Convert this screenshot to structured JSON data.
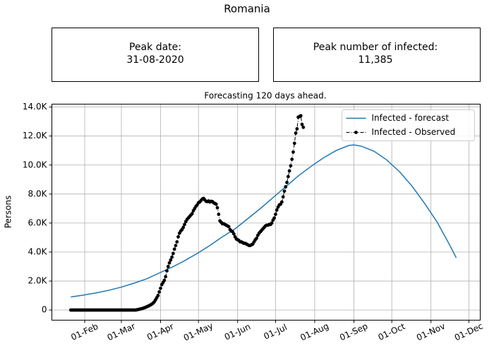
{
  "chart_data": {
    "type": "line",
    "title": "Romania",
    "annotations": [
      {
        "title": "Peak date:",
        "value": "31-08-2020"
      },
      {
        "title": "Peak number of infected:",
        "value": "11,385"
      }
    ],
    "subtitle": "Forecasting 120 days ahead.",
    "ylabel": "Persons",
    "xlim": [
      5,
      344
    ],
    "xticks": [
      {
        "value": 31,
        "label": "01-Feb"
      },
      {
        "value": 60,
        "label": "01-Mar"
      },
      {
        "value": 91,
        "label": "01-Apr"
      },
      {
        "value": 121,
        "label": "01-May"
      },
      {
        "value": 152,
        "label": "01-Jun"
      },
      {
        "value": 182,
        "label": "01-Jul"
      },
      {
        "value": 213,
        "label": "01-Aug"
      },
      {
        "value": 244,
        "label": "01-Sep"
      },
      {
        "value": 274,
        "label": "01-Oct"
      },
      {
        "value": 305,
        "label": "01-Nov"
      },
      {
        "value": 335,
        "label": "01-Dec"
      }
    ],
    "ylim": [
      -700,
      14200
    ],
    "yticks": [
      0,
      {
        "value": 2000,
        "label": "2.0K"
      },
      {
        "value": 4000,
        "label": "4.0K"
      },
      {
        "value": 6000,
        "label": "6.0K"
      },
      {
        "value": 8000,
        "label": "8.0K"
      },
      {
        "value": 10000,
        "label": "10.0K"
      },
      {
        "value": 12000,
        "label": "12.0K"
      },
      {
        "value": 14000,
        "label": "14.0K"
      }
    ],
    "grid": true,
    "legend": "upper right",
    "series": [
      {
        "name": "Infected - forecast",
        "color": "#1f77b4",
        "style": "line",
        "x": [
          20,
          30,
          40,
          50,
          60,
          70,
          80,
          90,
          100,
          110,
          120,
          130,
          140,
          150,
          160,
          170,
          180,
          190,
          200,
          210,
          220,
          230,
          240,
          244,
          250,
          260,
          270,
          280,
          290,
          300,
          310,
          320,
          325
        ],
        "values": [
          900,
          1030,
          1180,
          1360,
          1580,
          1850,
          2150,
          2550,
          2950,
          3400,
          3900,
          4450,
          5050,
          5600,
          6300,
          7000,
          7750,
          8500,
          9250,
          9900,
          10500,
          11000,
          11350,
          11385,
          11300,
          10950,
          10350,
          9550,
          8550,
          7350,
          6050,
          4450,
          3600
        ]
      },
      {
        "name": "Infected - Observed",
        "color": "#000000",
        "style": "dots",
        "x": [
          20,
          21,
          22,
          23,
          24,
          25,
          26,
          27,
          28,
          29,
          30,
          31,
          32,
          33,
          34,
          35,
          36,
          37,
          38,
          39,
          40,
          41,
          42,
          43,
          44,
          45,
          46,
          47,
          48,
          49,
          50,
          51,
          52,
          53,
          54,
          55,
          56,
          57,
          58,
          59,
          60,
          61,
          62,
          63,
          64,
          65,
          66,
          67,
          68,
          69,
          70,
          71,
          72,
          73,
          74,
          75,
          76,
          77,
          78,
          79,
          80,
          81,
          82,
          83,
          84,
          85,
          86,
          87,
          88,
          89,
          90,
          91,
          92,
          93,
          94,
          95,
          96,
          97,
          98,
          99,
          100,
          101,
          102,
          103,
          104,
          105,
          106,
          107,
          108,
          109,
          110,
          111,
          112,
          113,
          114,
          115,
          116,
          117,
          118,
          119,
          120,
          121,
          122,
          123,
          124,
          125,
          126,
          127,
          128,
          129,
          130,
          131,
          132,
          133,
          134,
          135,
          136,
          137,
          138,
          139,
          140,
          141,
          142,
          143,
          144,
          145,
          146,
          147,
          148,
          149,
          150,
          151,
          152,
          153,
          154,
          155,
          156,
          157,
          158,
          159,
          160,
          161,
          162,
          163,
          164,
          165,
          166,
          167,
          168,
          169,
          170,
          171,
          172,
          173,
          174,
          175,
          176,
          177,
          178,
          179,
          180,
          181,
          182,
          183,
          184,
          185,
          186,
          187,
          188,
          189,
          190,
          191,
          192,
          193,
          194,
          195,
          196,
          197,
          198,
          199,
          200,
          201,
          202,
          203,
          204
        ],
        "values": [
          0,
          0,
          0,
          0,
          0,
          0,
          0,
          0,
          0,
          0,
          0,
          0,
          0,
          0,
          0,
          0,
          0,
          0,
          0,
          0,
          0,
          0,
          0,
          0,
          0,
          0,
          0,
          0,
          0,
          0,
          0,
          0,
          0,
          0,
          0,
          0,
          0,
          0,
          0,
          0,
          0,
          0,
          0,
          0,
          0,
          0,
          0,
          0,
          0,
          0,
          0,
          0,
          10,
          30,
          50,
          70,
          90,
          120,
          150,
          180,
          220,
          260,
          300,
          350,
          400,
          470,
          560,
          700,
          850,
          1000,
          1250,
          1500,
          1750,
          1900,
          2050,
          2300,
          2700,
          3000,
          3250,
          3450,
          3650,
          3900,
          4200,
          4450,
          4700,
          5050,
          5300,
          5450,
          5550,
          5700,
          5900,
          6100,
          6250,
          6350,
          6450,
          6550,
          6650,
          6850,
          7000,
          7150,
          7250,
          7400,
          7450,
          7550,
          7650,
          7700,
          7600,
          7500,
          7480,
          7520,
          7450,
          7500,
          7480,
          7400,
          7350,
          7300,
          7050,
          6600,
          6150,
          6050,
          5950,
          5950,
          5900,
          5850,
          5800,
          5750,
          5550,
          5450,
          5400,
          5250,
          5050,
          4900,
          4850,
          4800,
          4700,
          4700,
          4650,
          4600,
          4600,
          4550,
          4500,
          4450,
          4450,
          4500,
          4550,
          4700,
          4850,
          4950,
          5150,
          5300,
          5400,
          5500,
          5600,
          5700,
          5800,
          5850,
          5850,
          5900,
          5900,
          6000,
          6200,
          6350,
          6600,
          6900,
          7100,
          7250,
          7300,
          7450,
          7800,
          8200,
          8500,
          8800,
          9200,
          9600,
          9950,
          10400,
          10900,
          11500,
          12200,
          12500,
          13300,
          13350,
          13400,
          12800,
          12600
        ]
      }
    ]
  }
}
